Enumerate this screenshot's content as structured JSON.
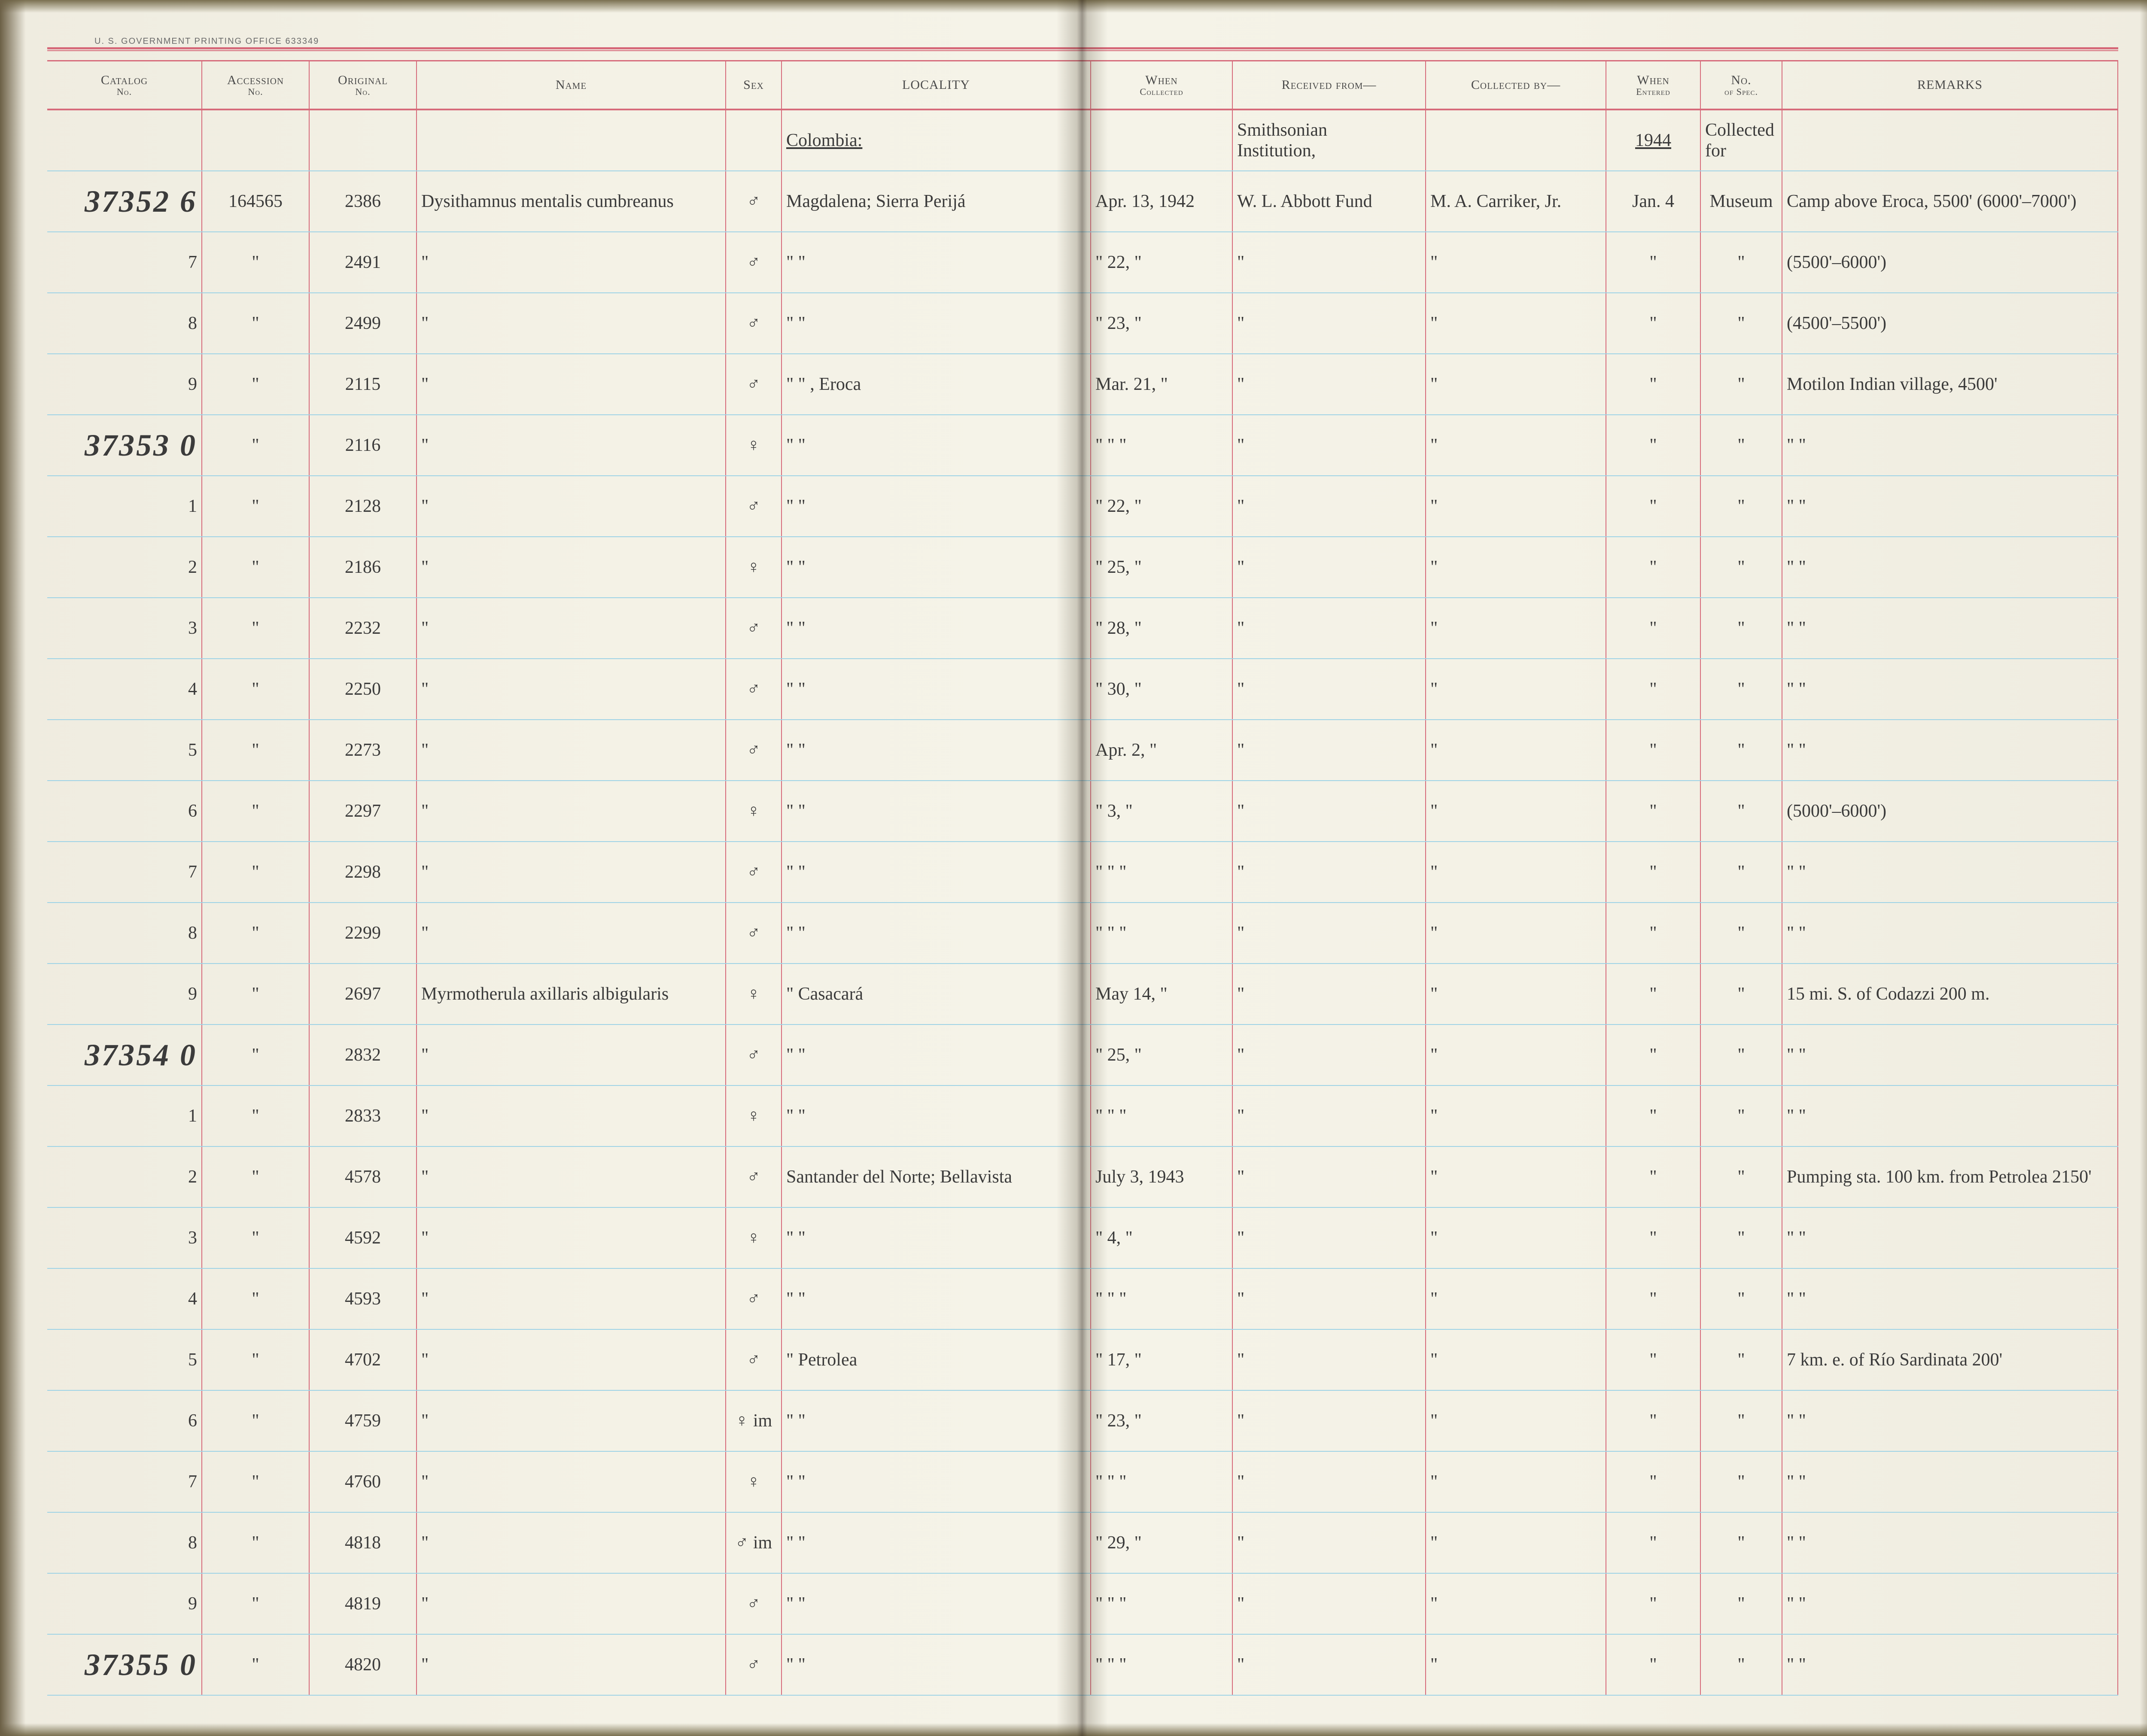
{
  "page": {
    "printer_note": "U. S. GOVERNMENT PRINTING OFFICE      633349",
    "background": "#f4f2e6",
    "rule_color": "#d66a7a",
    "line_color": "#9ed3e6",
    "ink_color": "#3b3b3b",
    "header_color": "#4a4a4a"
  },
  "headers": {
    "catalog": "Catalog",
    "catalog_sub": "No.",
    "accession": "Accession",
    "accession_sub": "No.",
    "original": "Original",
    "original_sub": "No.",
    "name": "Name",
    "sex": "Sex",
    "locality": "LOCALITY",
    "when_collected": "When",
    "when_collected_sub": "Collected",
    "received": "Received from—",
    "collected_by": "Collected by—",
    "entered": "When",
    "entered_sub": "Entered",
    "no_spec": "No.",
    "no_spec_sub": "of Spec.",
    "remarks": "REMARKS"
  },
  "super": {
    "locality_country": "Colombia:",
    "received_inst_1": "Smithsonian",
    "received_inst_2": "Institution,",
    "entered_year": "1944",
    "nospec_note_1": "Collected",
    "nospec_note_2": "for"
  },
  "rows": [
    {
      "catalog": "37352 6",
      "accession": "164565",
      "original": "2386",
      "name": "Dysithamnus mentalis cumbreanus",
      "sex": "♂",
      "locality": "Magdalena; Sierra Perijá",
      "when": "Apr. 13, 1942",
      "received": "W. L. Abbott Fund",
      "collected": "M. A. Carriker, Jr.",
      "entered": "Jan. 4",
      "nospec": "Museum",
      "remarks": "Camp above Eroca, 5500'   (6000'–7000')"
    },
    {
      "catalog": "7",
      "accession": "\"",
      "original": "2491",
      "name": "\"",
      "sex": "♂",
      "locality": "\"       \"",
      "when": "\"  22,  \"",
      "received": "\"",
      "collected": "\"",
      "entered": "\"",
      "nospec": "\"",
      "remarks": "(5500'–6000')"
    },
    {
      "catalog": "8",
      "accession": "\"",
      "original": "2499",
      "name": "\"",
      "sex": "♂",
      "locality": "\"       \"",
      "when": "\"  23,  \"",
      "received": "\"",
      "collected": "\"",
      "entered": "\"",
      "nospec": "\"",
      "remarks": "(4500'–5500')"
    },
    {
      "catalog": "9",
      "accession": "\"",
      "original": "2115",
      "name": "\"",
      "sex": "♂",
      "locality": "\"     \"   , Eroca",
      "when": "Mar. 21,  \"",
      "received": "\"",
      "collected": "\"",
      "entered": "\"",
      "nospec": "\"",
      "remarks": "Motilon Indian village, 4500'"
    },
    {
      "catalog": "37353 0",
      "accession": "\"",
      "original": "2116",
      "name": "\"",
      "sex": "♀",
      "locality": "\"       \"",
      "when": "\"   \"   \"",
      "received": "\"",
      "collected": "\"",
      "entered": "\"",
      "nospec": "\"",
      "remarks": "\"     \""
    },
    {
      "catalog": "1",
      "accession": "\"",
      "original": "2128",
      "name": "\"",
      "sex": "♂",
      "locality": "\"       \"",
      "when": "\"  22,  \"",
      "received": "\"",
      "collected": "\"",
      "entered": "\"",
      "nospec": "\"",
      "remarks": "\"     \""
    },
    {
      "catalog": "2",
      "accession": "\"",
      "original": "2186",
      "name": "\"",
      "sex": "♀",
      "locality": "\"       \"",
      "when": "\"  25,  \"",
      "received": "\"",
      "collected": "\"",
      "entered": "\"",
      "nospec": "\"",
      "remarks": "\"     \""
    },
    {
      "catalog": "3",
      "accession": "\"",
      "original": "2232",
      "name": "\"",
      "sex": "♂",
      "locality": "\"       \"",
      "when": "\"  28,  \"",
      "received": "\"",
      "collected": "\"",
      "entered": "\"",
      "nospec": "\"",
      "remarks": "\"     \""
    },
    {
      "catalog": "4",
      "accession": "\"",
      "original": "2250",
      "name": "\"",
      "sex": "♂",
      "locality": "\"       \"",
      "when": "\"  30,  \"",
      "received": "\"",
      "collected": "\"",
      "entered": "\"",
      "nospec": "\"",
      "remarks": "\"     \""
    },
    {
      "catalog": "5",
      "accession": "\"",
      "original": "2273",
      "name": "\"",
      "sex": "♂",
      "locality": "\"       \"",
      "when": "Apr.  2,  \"",
      "received": "\"",
      "collected": "\"",
      "entered": "\"",
      "nospec": "\"",
      "remarks": "\"     \""
    },
    {
      "catalog": "6",
      "accession": "\"",
      "original": "2297",
      "name": "\"",
      "sex": "♀",
      "locality": "\"       \"",
      "when": "\"   3,  \"",
      "received": "\"",
      "collected": "\"",
      "entered": "\"",
      "nospec": "\"",
      "remarks": "(5000'–6000')"
    },
    {
      "catalog": "7",
      "accession": "\"",
      "original": "2298",
      "name": "\"",
      "sex": "♂",
      "locality": "\"       \"",
      "when": "\"   \"   \"",
      "received": "\"",
      "collected": "\"",
      "entered": "\"",
      "nospec": "\"",
      "remarks": "\"     \""
    },
    {
      "catalog": "8",
      "accession": "\"",
      "original": "2299",
      "name": "\"",
      "sex": "♂",
      "locality": "\"       \"",
      "when": "\"   \"   \"",
      "received": "\"",
      "collected": "\"",
      "entered": "\"",
      "nospec": "\"",
      "remarks": "\"     \""
    },
    {
      "catalog": "9",
      "accession": "\"",
      "original": "2697",
      "name": "Myrmotherula axillaris albigularis",
      "sex": "♀",
      "locality": "\"     Casacará",
      "when": "May 14,  \"",
      "received": "\"",
      "collected": "\"",
      "entered": "\"",
      "nospec": "\"",
      "remarks": "15 mi. S. of Codazzi        200 m."
    },
    {
      "catalog": "37354 0",
      "accession": "\"",
      "original": "2832",
      "name": "\"",
      "sex": "♂",
      "locality": "\"       \"",
      "when": "\"  25,  \"",
      "received": "\"",
      "collected": "\"",
      "entered": "\"",
      "nospec": "\"",
      "remarks": "\"     \""
    },
    {
      "catalog": "1",
      "accession": "\"",
      "original": "2833",
      "name": "\"",
      "sex": "♀",
      "locality": "\"       \"",
      "when": "\"   \"   \"",
      "received": "\"",
      "collected": "\"",
      "entered": "\"",
      "nospec": "\"",
      "remarks": "\"     \""
    },
    {
      "catalog": "2",
      "accession": "\"",
      "original": "4578",
      "name": "\"",
      "sex": "♂",
      "locality": "Santander del Norte; Bellavista",
      "when": "July 3, 1943",
      "received": "\"",
      "collected": "\"",
      "entered": "\"",
      "nospec": "\"",
      "remarks": "Pumping sta. 100 km. from Petrolea   2150'"
    },
    {
      "catalog": "3",
      "accession": "\"",
      "original": "4592",
      "name": "\"",
      "sex": "♀",
      "locality": "\"       \"",
      "when": "\"   4,  \"",
      "received": "\"",
      "collected": "\"",
      "entered": "\"",
      "nospec": "\"",
      "remarks": "\"     \""
    },
    {
      "catalog": "4",
      "accession": "\"",
      "original": "4593",
      "name": "\"",
      "sex": "♂",
      "locality": "\"       \"",
      "when": "\"   \"   \"",
      "received": "\"",
      "collected": "\"",
      "entered": "\"",
      "nospec": "\"",
      "remarks": "\"     \""
    },
    {
      "catalog": "5",
      "accession": "\"",
      "original": "4702",
      "name": "\"",
      "sex": "♂",
      "locality": "\"     Petrolea",
      "when": "\"  17,  \"",
      "received": "\"",
      "collected": "\"",
      "entered": "\"",
      "nospec": "\"",
      "remarks": "7 km. e. of Río Sardinata        200'"
    },
    {
      "catalog": "6",
      "accession": "\"",
      "original": "4759",
      "name": "\"",
      "sex": "♀ im",
      "locality": "\"       \"",
      "when": "\"  23,  \"",
      "received": "\"",
      "collected": "\"",
      "entered": "\"",
      "nospec": "\"",
      "remarks": "\"     \""
    },
    {
      "catalog": "7",
      "accession": "\"",
      "original": "4760",
      "name": "\"",
      "sex": "♀",
      "locality": "\"       \"",
      "when": "\"   \"   \"",
      "received": "\"",
      "collected": "\"",
      "entered": "\"",
      "nospec": "\"",
      "remarks": "\"     \""
    },
    {
      "catalog": "8",
      "accession": "\"",
      "original": "4818",
      "name": "\"",
      "sex": "♂ im",
      "locality": "\"       \"",
      "when": "\"  29,  \"",
      "received": "\"",
      "collected": "\"",
      "entered": "\"",
      "nospec": "\"",
      "remarks": "\"     \""
    },
    {
      "catalog": "9",
      "accession": "\"",
      "original": "4819",
      "name": "\"",
      "sex": "♂",
      "locality": "\"       \"",
      "when": "\"   \"   \"",
      "received": "\"",
      "collected": "\"",
      "entered": "\"",
      "nospec": "\"",
      "remarks": "\"     \""
    },
    {
      "catalog": "37355 0",
      "accession": "\"",
      "original": "4820",
      "name": "\"",
      "sex": "♂",
      "locality": "\"       \"",
      "when": "\"   \"   \"",
      "received": "\"",
      "collected": "\"",
      "entered": "\"",
      "nospec": "\"",
      "remarks": "\"     \""
    }
  ]
}
